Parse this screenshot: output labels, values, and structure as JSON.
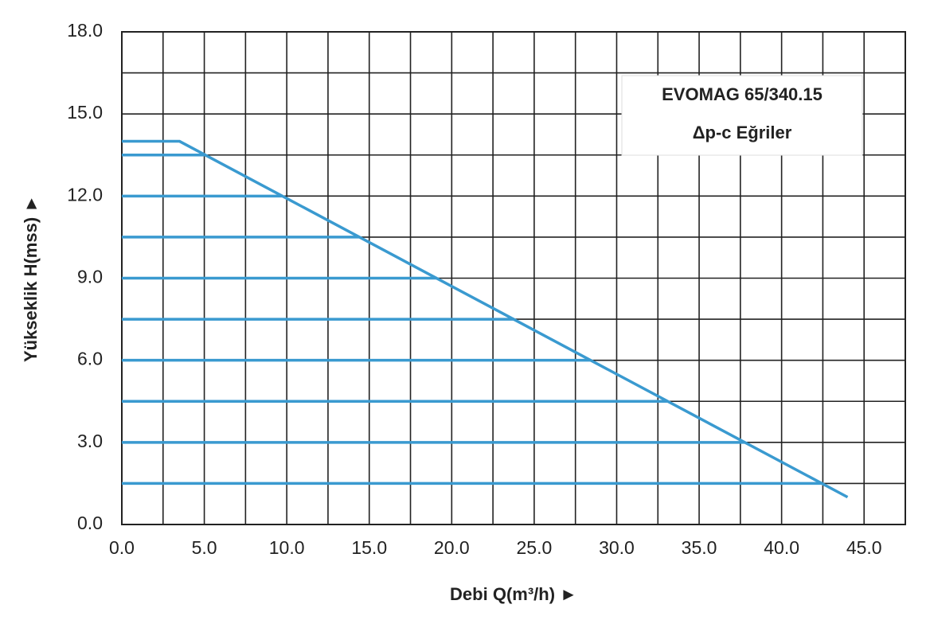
{
  "chart_data": {
    "type": "line",
    "annotations": [
      "EVOMAG 65/340.15",
      "Δp-c Eğriler"
    ],
    "x_label": "Debi Q(m³/h) ►",
    "y_label": "Yükseklik H(mss) ►",
    "xlim": [
      0,
      47.5
    ],
    "ylim": [
      0,
      18
    ],
    "xticks": [
      {
        "value": 0,
        "label": "0.0"
      },
      {
        "value": 5,
        "label": "5.0"
      },
      {
        "value": 10,
        "label": "10.0"
      },
      {
        "value": 15,
        "label": "15.0"
      },
      {
        "value": 20,
        "label": "20.0"
      },
      {
        "value": 25,
        "label": "25.0"
      },
      {
        "value": 30,
        "label": "30.0"
      },
      {
        "value": 35,
        "label": "35.0"
      },
      {
        "value": 40,
        "label": "40.0"
      },
      {
        "value": 45,
        "label": "45.0"
      }
    ],
    "yticks": [
      {
        "value": 0,
        "label": "0.0"
      },
      {
        "value": 3,
        "label": "3.0"
      },
      {
        "value": 6,
        "label": "6.0"
      },
      {
        "value": 9,
        "label": "9.0"
      },
      {
        "value": 12,
        "label": "12.0"
      },
      {
        "value": 15,
        "label": "15.0"
      },
      {
        "value": 18,
        "label": "18.0"
      }
    ],
    "x_minor_grid": [
      2.5,
      7.5,
      12.5,
      17.5,
      22.5,
      27.5,
      32.5,
      37.5,
      42.5,
      47.5
    ],
    "y_minor_grid": [
      1.5,
      4.5,
      7.5,
      10.5,
      13.5,
      16.5
    ],
    "grid": true,
    "color": "#3a9ad0",
    "series": [
      {
        "x": [
          0,
          3.5,
          44
        ],
        "values": [
          14,
          14,
          1
        ]
      },
      {
        "x": [
          0,
          5.1
        ],
        "values": [
          13.5,
          13.5
        ]
      },
      {
        "x": [
          0,
          9.7
        ],
        "values": [
          12,
          12
        ]
      },
      {
        "x": [
          0,
          14.4
        ],
        "values": [
          10.5,
          10.5
        ]
      },
      {
        "x": [
          0,
          19.1
        ],
        "values": [
          9,
          9
        ]
      },
      {
        "x": [
          0,
          23.8
        ],
        "values": [
          7.5,
          7.5
        ]
      },
      {
        "x": [
          0,
          28.4
        ],
        "values": [
          6,
          6
        ]
      },
      {
        "x": [
          0,
          33.1
        ],
        "values": [
          4.5,
          4.5
        ]
      },
      {
        "x": [
          0,
          37.8
        ],
        "values": [
          3,
          3
        ]
      },
      {
        "x": [
          0,
          42.5
        ],
        "values": [
          1.5,
          1.5
        ]
      }
    ]
  }
}
